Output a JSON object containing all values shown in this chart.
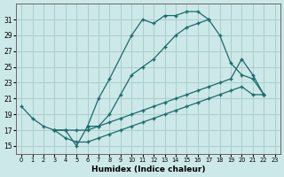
{
  "xlabel": "Humidex (Indice chaleur)",
  "bg_color": "#cde8e8",
  "grid_color": "#a8cece",
  "line_color": "#1a6b6b",
  "xlim": [
    -0.5,
    23.5
  ],
  "ylim": [
    14,
    33
  ],
  "yticks": [
    15,
    17,
    19,
    21,
    23,
    25,
    27,
    29,
    31
  ],
  "xticks": [
    0,
    1,
    2,
    3,
    4,
    5,
    6,
    7,
    8,
    9,
    10,
    11,
    12,
    13,
    14,
    15,
    16,
    17,
    18,
    19,
    20,
    21,
    22,
    23
  ],
  "series": [
    {
      "x": [
        0,
        1,
        2,
        3,
        4,
        5,
        6,
        7,
        8,
        10,
        11,
        12,
        13,
        14,
        15,
        16,
        17
      ],
      "y": [
        20.0,
        18.5,
        17.5,
        17.0,
        17.0,
        15.0,
        17.5,
        21.0,
        23.5,
        29.0,
        31.0,
        30.5,
        31.5,
        31.5,
        32.0,
        32.0,
        31.0
      ]
    },
    {
      "x": [
        6,
        7,
        8,
        9,
        10,
        11,
        12,
        13,
        14,
        15,
        16,
        17,
        18,
        19,
        20,
        21,
        22
      ],
      "y": [
        17.5,
        17.5,
        19.0,
        21.5,
        24.0,
        25.0,
        26.0,
        27.5,
        29.0,
        30.0,
        30.5,
        31.0,
        29.0,
        25.5,
        24.0,
        23.5,
        21.5
      ]
    },
    {
      "x": [
        3,
        4,
        5,
        6,
        7,
        8,
        9,
        10,
        11,
        12,
        13,
        14,
        15,
        16,
        17,
        18,
        19,
        20,
        21,
        22
      ],
      "y": [
        17.0,
        17.0,
        17.0,
        17.0,
        17.5,
        18.0,
        18.5,
        19.0,
        19.5,
        20.0,
        20.5,
        21.0,
        21.5,
        22.0,
        22.5,
        23.0,
        23.5,
        26.0,
        24.0,
        21.5
      ]
    },
    {
      "x": [
        3,
        4,
        5,
        6,
        7,
        8,
        9,
        10,
        11,
        12,
        13,
        14,
        15,
        16,
        17,
        18,
        19,
        20,
        21,
        22
      ],
      "y": [
        17.0,
        16.0,
        15.5,
        15.5,
        16.0,
        16.5,
        17.0,
        17.5,
        18.0,
        18.5,
        19.0,
        19.5,
        20.0,
        20.5,
        21.0,
        21.5,
        22.0,
        22.5,
        21.5,
        21.5
      ]
    }
  ]
}
